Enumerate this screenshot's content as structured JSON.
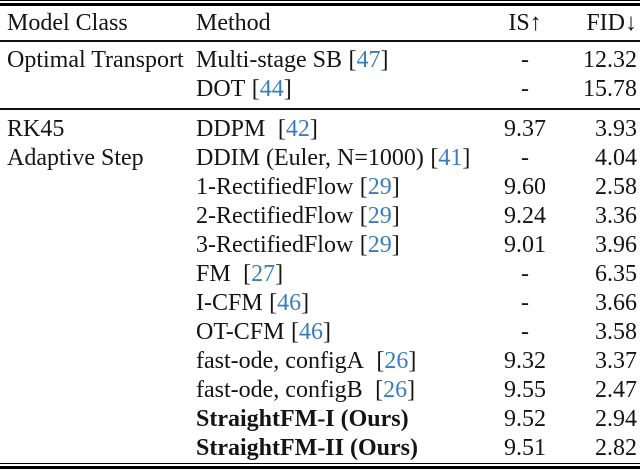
{
  "table": {
    "header": {
      "model_class": "Model Class",
      "method": "Method",
      "is": "IS↑",
      "fid": "FID↓"
    },
    "colors": {
      "citation_blue": "#3a7dbf",
      "text": "#141414",
      "rule": "#000000",
      "background": "#ffffff"
    },
    "sections": [
      {
        "rows": [
          {
            "model_class": "Optimal Transport",
            "method": "Multi-stage SB",
            "cite": "47",
            "is": "-",
            "fid": "12.32",
            "bold": false
          },
          {
            "model_class": "",
            "method": "DOT",
            "cite": "44",
            "is": "-",
            "fid": "15.78",
            "bold": false
          }
        ]
      },
      {
        "rows": [
          {
            "model_class": "RK45",
            "method": "DDPM ",
            "cite": "42",
            "is": "9.37",
            "fid": "3.93",
            "bold": false
          },
          {
            "model_class": "Adaptive Step",
            "method": "DDIM (Euler, N=1000)",
            "cite": "41",
            "is": "-",
            "fid": "4.04",
            "bold": false
          },
          {
            "model_class": "",
            "method": "1-RectifiedFlow",
            "cite": "29",
            "is": "9.60",
            "fid": "2.58",
            "bold": false
          },
          {
            "model_class": "",
            "method": "2-RectifiedFlow",
            "cite": "29",
            "is": "9.24",
            "fid": "3.36",
            "bold": false
          },
          {
            "model_class": "",
            "method": "3-RectifiedFlow",
            "cite": "29",
            "is": "9.01",
            "fid": "3.96",
            "bold": false
          },
          {
            "model_class": "",
            "method": "FM ",
            "cite": "27",
            "is": "-",
            "fid": "6.35",
            "bold": false
          },
          {
            "model_class": "",
            "method": "I-CFM",
            "cite": "46",
            "is": "-",
            "fid": "3.66",
            "bold": false
          },
          {
            "model_class": "",
            "method": "OT-CFM",
            "cite": "46",
            "is": "-",
            "fid": "3.58",
            "bold": false
          },
          {
            "model_class": "",
            "method": "fast-ode, configA ",
            "cite": "26",
            "is": "9.32",
            "fid": "3.37",
            "bold": false
          },
          {
            "model_class": "",
            "method": "fast-ode, configB ",
            "cite": "26",
            "is": "9.55",
            "fid": "2.47",
            "bold": false
          },
          {
            "model_class": "",
            "method": "StraightFM-I (Ours)",
            "cite": null,
            "is": "9.52",
            "fid": "2.94",
            "bold": true
          },
          {
            "model_class": "",
            "method": "StraightFM-II (Ours)",
            "cite": null,
            "is": "9.51",
            "fid": "2.82",
            "bold": true
          }
        ]
      }
    ]
  }
}
